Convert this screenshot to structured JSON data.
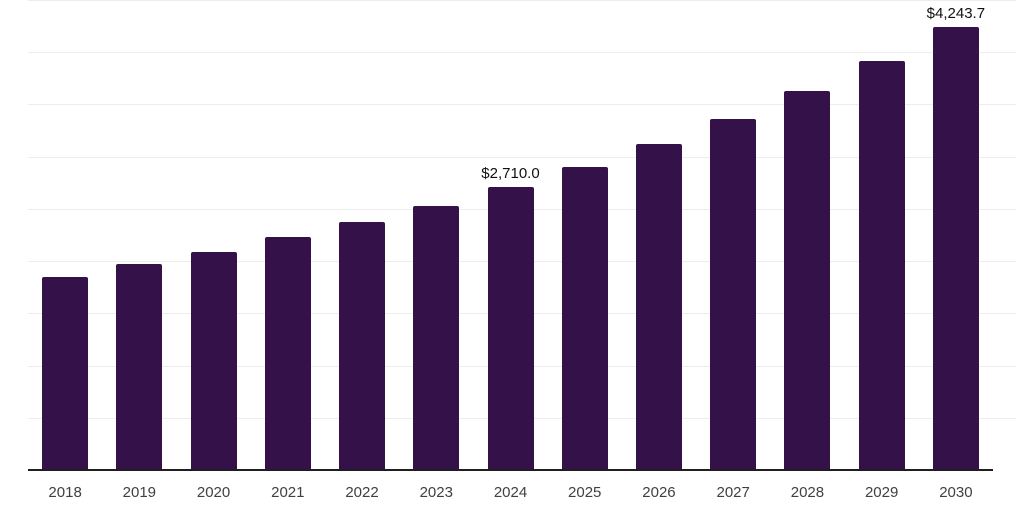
{
  "chart_data": {
    "type": "bar",
    "title": "",
    "categories": [
      "2018",
      "2019",
      "2020",
      "2021",
      "2022",
      "2023",
      "2024",
      "2025",
      "2026",
      "2027",
      "2028",
      "2029",
      "2030"
    ],
    "values": [
      1852,
      1977,
      2092,
      2233,
      2370,
      2530,
      2710.0,
      2904,
      3125,
      3361,
      3630,
      3918,
      4243.7
    ],
    "data_labels": [
      {
        "category": "2024",
        "text": "$2,710.0"
      },
      {
        "category": "2030",
        "text": "$4,243.7"
      }
    ],
    "xlabel": "",
    "ylabel": "",
    "ylim": [
      0,
      4500
    ],
    "ytick_interval": 500,
    "yaxis_tick_labels_visible": false,
    "grid": "horizontal",
    "legend": "none",
    "colors": {
      "bar": "#341149",
      "axis_line": "#1f1f1f",
      "gridline": "#ededed",
      "data_label": "#111111",
      "tick_label": "#404040",
      "background": "#ffffff"
    }
  }
}
